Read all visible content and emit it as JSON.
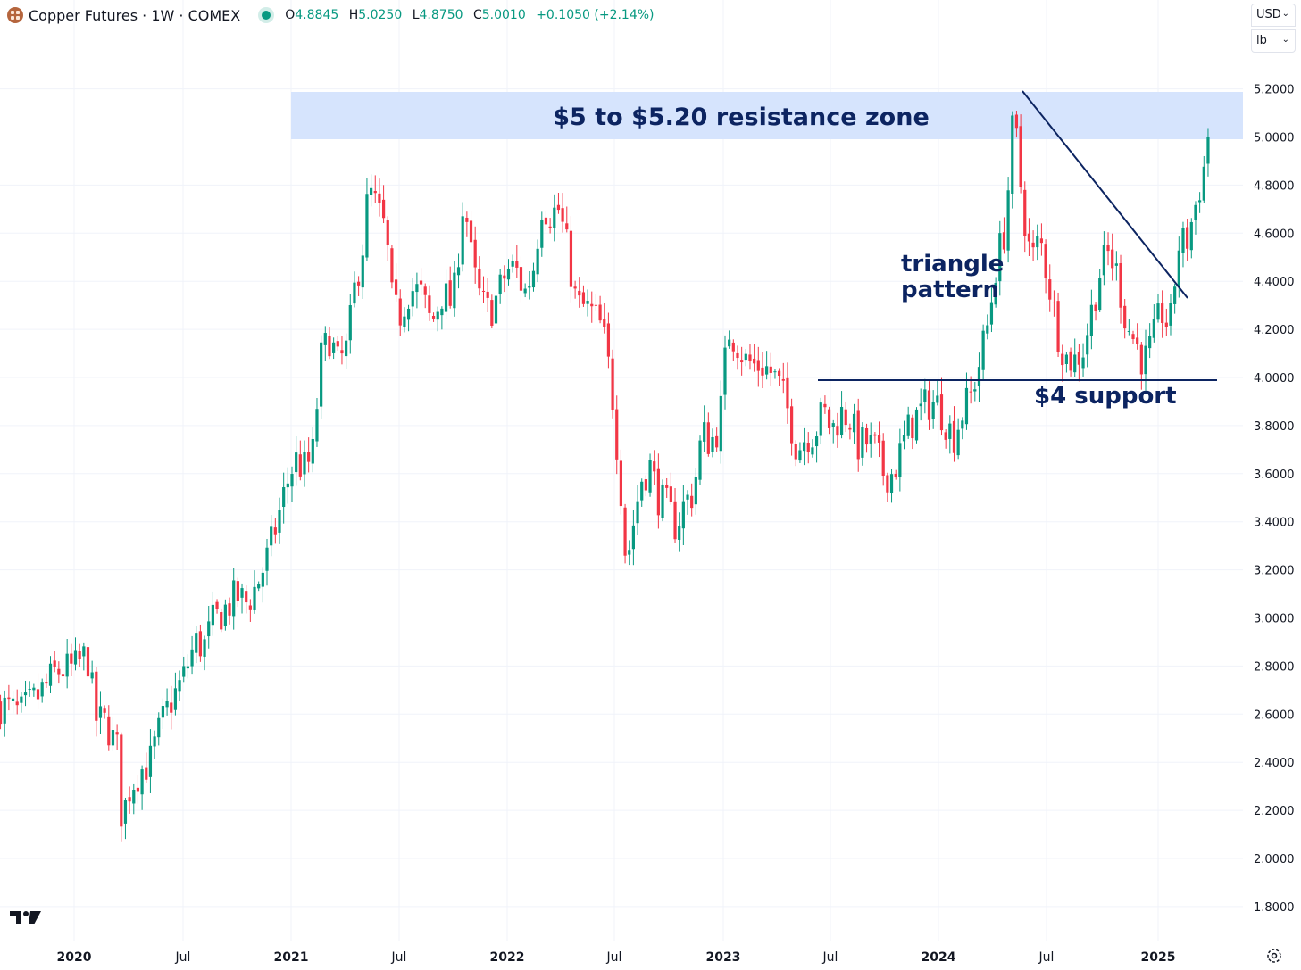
{
  "header": {
    "title": "Copper Futures · 1W · COMEX",
    "ohlc": {
      "open_label": "O",
      "open": "4.8845",
      "high_label": "H",
      "high": "5.0250",
      "low_label": "L",
      "low": "4.8750",
      "close_label": "C",
      "close": "5.0010",
      "change": "+0.1050 (+2.14%)"
    }
  },
  "selectors": {
    "currency": "USD",
    "unit": "lb"
  },
  "colors": {
    "up": "#089981",
    "down": "#f23645",
    "annotation": "#0c2461",
    "zone": "#d6e4fd",
    "grid": "#f0f3fa"
  },
  "icons": {
    "logo": "tradingview-logo-icon",
    "settings": "gear-icon",
    "symbol": "copper-logo-icon"
  },
  "chart_data": {
    "type": "candlestick",
    "x_axis": {
      "ticks": [
        "2020",
        "Jul",
        "2021",
        "Jul",
        "2022",
        "Jul",
        "2023",
        "Jul",
        "2024",
        "Jul",
        "2025"
      ]
    },
    "y_axis": {
      "ticks": [
        "1.8000",
        "2.0000",
        "2.2000",
        "2.4000",
        "2.6000",
        "2.8000",
        "3.0000",
        "3.2000",
        "3.4000",
        "3.6000",
        "3.8000",
        "4.0000",
        "4.2000",
        "4.4000",
        "4.6000",
        "4.8000",
        "5.0000",
        "5.2000"
      ],
      "ylim": [
        1.72,
        5.42
      ]
    },
    "grid": true,
    "series": [
      {
        "values": [
          [
            2019.66,
            2.64
          ],
          [
            2019.75,
            2.6
          ],
          [
            2019.83,
            2.67
          ],
          [
            2019.92,
            2.78
          ],
          [
            2020.0,
            2.79
          ],
          [
            2020.06,
            2.85
          ],
          [
            2020.1,
            2.58
          ],
          [
            2020.15,
            2.56
          ],
          [
            2020.2,
            2.45
          ],
          [
            2020.22,
            2.16
          ],
          [
            2020.26,
            2.3
          ],
          [
            2020.3,
            2.36
          ],
          [
            2020.35,
            2.4
          ],
          [
            2020.4,
            2.55
          ],
          [
            2020.44,
            2.64
          ],
          [
            2020.5,
            2.74
          ],
          [
            2020.56,
            2.9
          ],
          [
            2020.6,
            2.88
          ],
          [
            2020.64,
            2.98
          ],
          [
            2020.7,
            3.04
          ],
          [
            2020.75,
            3.09
          ],
          [
            2020.8,
            3.06
          ],
          [
            2020.85,
            3.15
          ],
          [
            2020.9,
            3.27
          ],
          [
            2020.94,
            3.41
          ],
          [
            2020.98,
            3.55
          ],
          [
            2021.02,
            3.66
          ],
          [
            2021.06,
            3.62
          ],
          [
            2021.1,
            3.66
          ],
          [
            2021.14,
            4.08
          ],
          [
            2021.18,
            4.17
          ],
          [
            2021.22,
            4.05
          ],
          [
            2021.26,
            4.12
          ],
          [
            2021.3,
            4.4
          ],
          [
            2021.33,
            4.52
          ],
          [
            2021.36,
            4.78
          ],
          [
            2021.4,
            4.7
          ],
          [
            2021.44,
            4.6
          ],
          [
            2021.47,
            4.3
          ],
          [
            2021.5,
            4.25
          ],
          [
            2021.55,
            4.37
          ],
          [
            2021.6,
            4.35
          ],
          [
            2021.65,
            4.22
          ],
          [
            2021.7,
            4.35
          ],
          [
            2021.75,
            4.3
          ],
          [
            2021.8,
            4.76
          ],
          [
            2021.84,
            4.45
          ],
          [
            2021.88,
            4.31
          ],
          [
            2021.92,
            4.27
          ],
          [
            2021.96,
            4.35
          ],
          [
            2022.0,
            4.45
          ],
          [
            2022.04,
            4.45
          ],
          [
            2022.08,
            4.35
          ],
          [
            2022.12,
            4.45
          ],
          [
            2022.16,
            4.72
          ],
          [
            2022.2,
            4.68
          ],
          [
            2022.24,
            4.7
          ],
          [
            2022.28,
            4.52
          ],
          [
            2022.32,
            4.3
          ],
          [
            2022.36,
            4.29
          ],
          [
            2022.4,
            4.26
          ],
          [
            2022.44,
            4.2
          ],
          [
            2022.48,
            3.98
          ],
          [
            2022.52,
            3.6
          ],
          [
            2022.55,
            3.22
          ],
          [
            2022.58,
            3.38
          ],
          [
            2022.62,
            3.58
          ],
          [
            2022.66,
            3.63
          ],
          [
            2022.7,
            3.5
          ],
          [
            2022.74,
            3.46
          ],
          [
            2022.78,
            3.38
          ],
          [
            2022.82,
            3.48
          ],
          [
            2022.86,
            3.52
          ],
          [
            2022.9,
            3.77
          ],
          [
            2022.94,
            3.73
          ],
          [
            2022.98,
            3.8
          ],
          [
            2023.02,
            4.2
          ],
          [
            2023.06,
            4.15
          ],
          [
            2023.1,
            4.07
          ],
          [
            2023.14,
            4.05
          ],
          [
            2023.18,
            4.05
          ],
          [
            2023.22,
            4.02
          ],
          [
            2023.26,
            3.96
          ],
          [
            2023.3,
            3.85
          ],
          [
            2023.34,
            3.7
          ],
          [
            2023.38,
            3.76
          ],
          [
            2023.42,
            3.77
          ],
          [
            2023.46,
            3.86
          ],
          [
            2023.5,
            3.78
          ],
          [
            2023.54,
            3.85
          ],
          [
            2023.58,
            3.84
          ],
          [
            2023.62,
            3.72
          ],
          [
            2023.66,
            3.73
          ],
          [
            2023.7,
            3.7
          ],
          [
            2023.74,
            3.6
          ],
          [
            2023.78,
            3.6
          ],
          [
            2023.82,
            3.7
          ],
          [
            2023.86,
            3.8
          ],
          [
            2023.9,
            3.85
          ],
          [
            2023.94,
            3.89
          ],
          [
            2023.98,
            3.9
          ],
          [
            2024.02,
            3.83
          ],
          [
            2024.06,
            3.75
          ],
          [
            2024.1,
            3.85
          ],
          [
            2024.14,
            3.92
          ],
          [
            2024.18,
            4.06
          ],
          [
            2024.22,
            4.22
          ],
          [
            2024.26,
            4.48
          ],
          [
            2024.3,
            4.62
          ],
          [
            2024.34,
            5.1
          ],
          [
            2024.38,
            4.72
          ],
          [
            2024.42,
            4.48
          ],
          [
            2024.46,
            4.58
          ],
          [
            2024.5,
            4.4
          ],
          [
            2024.54,
            4.2
          ],
          [
            2024.58,
            4.08
          ],
          [
            2024.62,
            4.07
          ],
          [
            2024.66,
            4.12
          ],
          [
            2024.7,
            4.28
          ],
          [
            2024.74,
            4.45
          ],
          [
            2024.78,
            4.52
          ],
          [
            2024.82,
            4.42
          ],
          [
            2024.86,
            4.22
          ],
          [
            2024.9,
            4.15
          ],
          [
            2024.94,
            4.06
          ],
          [
            2024.98,
            4.14
          ],
          [
            2025.02,
            4.28
          ],
          [
            2025.06,
            4.2
          ],
          [
            2025.1,
            4.55
          ],
          [
            2025.14,
            4.57
          ],
          [
            2025.18,
            4.72
          ],
          [
            2025.22,
            4.88
          ],
          [
            2025.24,
            5.0
          ]
        ]
      }
    ],
    "annotations": {
      "resistance": "$5 to $5.20 resistance zone",
      "triangle_line1": "triangle",
      "triangle_line2": "pattern",
      "support": "$4 support"
    }
  }
}
